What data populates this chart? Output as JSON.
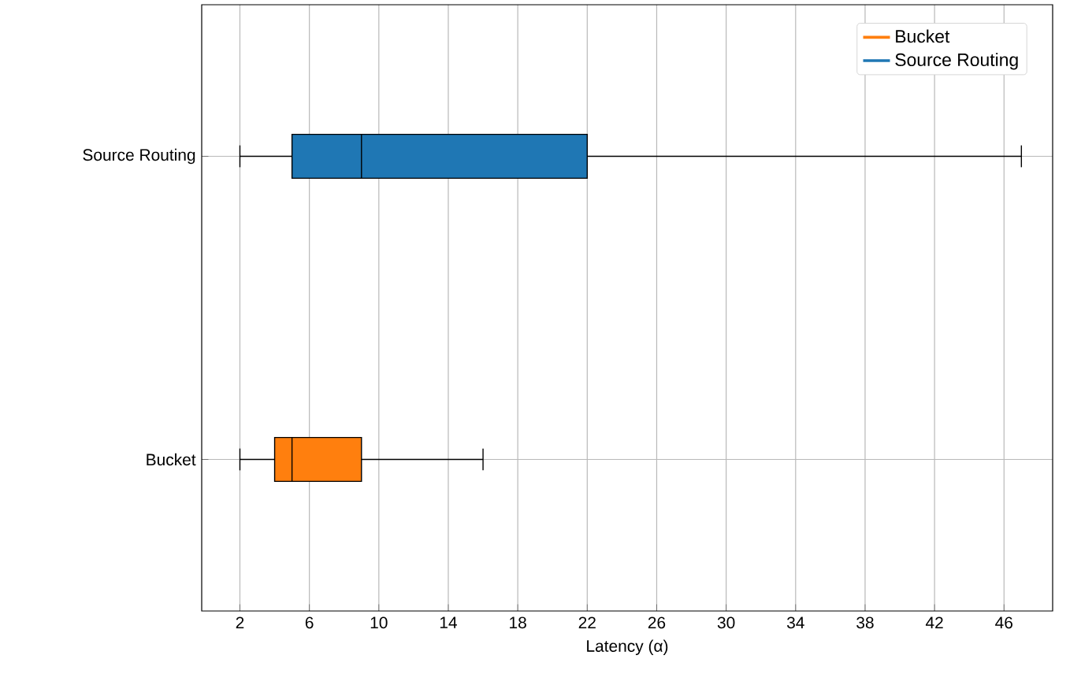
{
  "chart_data": {
    "type": "box",
    "orientation": "horizontal",
    "xlabel": "Latency (α)",
    "categories": [
      "Source Routing",
      "Bucket"
    ],
    "series": [
      {
        "name": "Bucket",
        "color": "#ff7f0e",
        "boxes": [
          null,
          {
            "low": 2,
            "q1": 4,
            "median": 5,
            "q3": 9,
            "high": 16
          }
        ]
      },
      {
        "name": "Source Routing",
        "color": "#1f77b4",
        "boxes": [
          {
            "low": 2,
            "q1": 5,
            "median": 9,
            "q3": 22,
            "high": 47
          },
          null
        ]
      }
    ],
    "xlim": [
      -0.2,
      48.8
    ],
    "xticks": [
      2,
      6,
      10,
      14,
      18,
      22,
      26,
      30,
      34,
      38,
      42,
      46
    ],
    "grid": true,
    "legend": "top right"
  }
}
